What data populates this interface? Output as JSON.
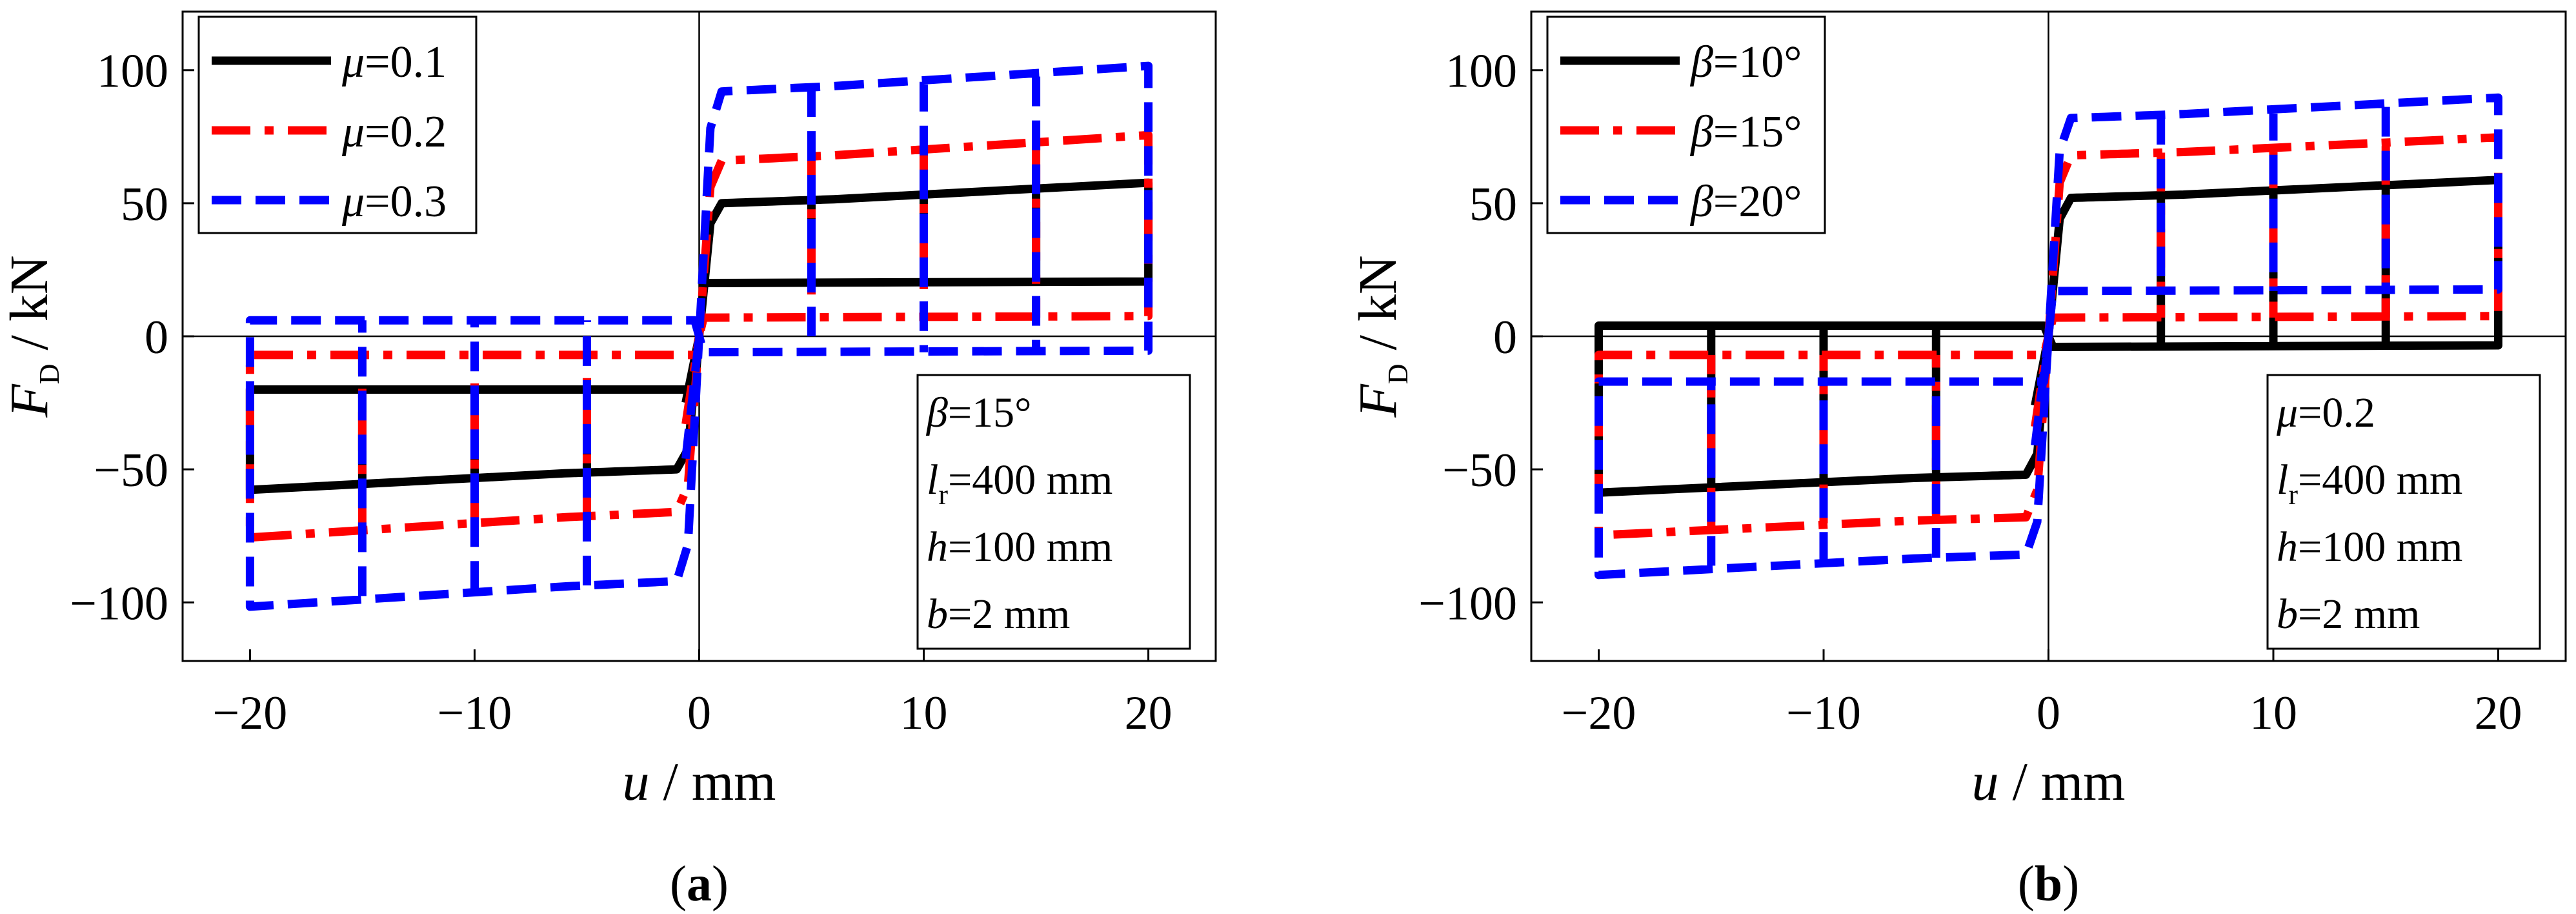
{
  "chart_data": [
    {
      "type": "line",
      "panel_label": "(a)",
      "panel_letter": "a",
      "xlabel_sym": "u",
      "xlabel_unit": "/ mm",
      "ylabel_sym": "F",
      "ylabel_sub": "D",
      "ylabel_unit": "/ kN",
      "xlim": [
        -23,
        23
      ],
      "ylim": [
        -122,
        122
      ],
      "xticks": [
        -20,
        -10,
        0,
        10,
        20
      ],
      "xtick_labels": [
        "−20",
        "−10",
        "0",
        "10",
        "20"
      ],
      "yticks": [
        -100,
        -50,
        0,
        50,
        100
      ],
      "ytick_labels": [
        "−100",
        "−50",
        "0",
        "50",
        "100"
      ],
      "legend_position": "top-left",
      "series": [
        {
          "name": "μ=0.1",
          "sym": "μ",
          "val": "=0.1",
          "color": "#000000",
          "style": "solid",
          "amplitudes": [
            5,
            10,
            15,
            20
          ],
          "slip_force": 20,
          "peak_force": 50,
          "peak_slope": 0.3
        },
        {
          "name": "μ=0.2",
          "sym": "μ",
          "val": "=0.2",
          "color": "#ff0000",
          "style": "dashdot",
          "amplitudes": [
            5,
            10,
            15,
            20
          ],
          "slip_force": 7,
          "peak_force": 66,
          "peak_slope": 0.4
        },
        {
          "name": "μ=0.3",
          "sym": "μ",
          "val": "=0.3",
          "color": "#0000ff",
          "style": "dash",
          "amplitudes": [
            5,
            10,
            15,
            20
          ],
          "slip_force": -6,
          "peak_force": 92,
          "peak_slope": 0.4
        }
      ],
      "annotation": [
        {
          "sym": "β",
          "sub": "",
          "val": "=15°"
        },
        {
          "sym": "l",
          "sub": "r",
          "val": "=400 mm"
        },
        {
          "sym": "h",
          "sub": "",
          "val": "=100 mm"
        },
        {
          "sym": "b",
          "sub": "",
          "val": "=2 mm"
        }
      ]
    },
    {
      "type": "line",
      "panel_label": "(b)",
      "panel_letter": "b",
      "xlabel_sym": "u",
      "xlabel_unit": "/ mm",
      "ylabel_sym": "F",
      "ylabel_sub": "D",
      "ylabel_unit": "/ kN",
      "xlim": [
        -23,
        23
      ],
      "ylim": [
        -122,
        122
      ],
      "xticks": [
        -20,
        -10,
        0,
        10,
        20
      ],
      "xtick_labels": [
        "−20",
        "−10",
        "0",
        "10",
        "20"
      ],
      "yticks": [
        -100,
        -50,
        0,
        50,
        100
      ],
      "ytick_labels": [
        "−100",
        "−50",
        "0",
        "50",
        "100"
      ],
      "legend_position": "top-left",
      "series": [
        {
          "name": "β=10°",
          "sym": "β",
          "val": "=10°",
          "color": "#000000",
          "style": "solid",
          "amplitudes": [
            5,
            10,
            15,
            20
          ],
          "slip_force": -4,
          "peak_force": 52,
          "peak_slope": 0.25
        },
        {
          "name": "β=15°",
          "sym": "β",
          "val": "=15°",
          "color": "#ff0000",
          "style": "dashdot",
          "amplitudes": [
            5,
            10,
            15,
            20
          ],
          "slip_force": 7,
          "peak_force": 68,
          "peak_slope": 0.25
        },
        {
          "name": "β=20°",
          "sym": "β",
          "val": "=20°",
          "color": "#0000ff",
          "style": "dash",
          "amplitudes": [
            5,
            10,
            15,
            20
          ],
          "slip_force": 17,
          "peak_force": 82,
          "peak_slope": 0.3
        }
      ],
      "annotation": [
        {
          "sym": "μ",
          "sub": "",
          "val": "=0.2"
        },
        {
          "sym": "l",
          "sub": "r",
          "val": "=400 mm"
        },
        {
          "sym": "h",
          "sub": "",
          "val": "=100 mm"
        },
        {
          "sym": "b",
          "sub": "",
          "val": "=2 mm"
        }
      ]
    }
  ]
}
